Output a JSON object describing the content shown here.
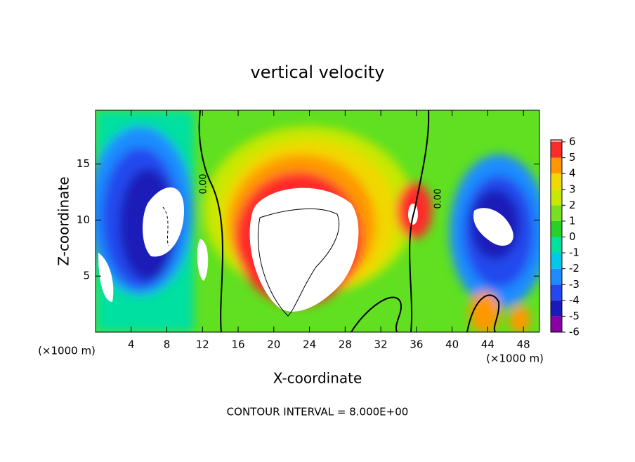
{
  "chart_data": {
    "type": "contour",
    "title": "vertical velocity",
    "x_label": "X-coordinate",
    "y_label": "Z-coordinate",
    "x_unit": "(×1000 m)",
    "xlim": [
      0,
      49.8
    ],
    "ylim": [
      0,
      19.8
    ],
    "xticks": [
      4,
      8,
      12,
      16,
      20,
      24,
      28,
      32,
      36,
      40,
      44,
      48
    ],
    "yticks": [
      5,
      10,
      15
    ],
    "colorbar": {
      "ticks": [
        6,
        5,
        4,
        3,
        2,
        1,
        0,
        -1,
        -2,
        -3,
        -4,
        -5,
        -6
      ],
      "colors": [
        "#8a00a8",
        "#1a1ab8",
        "#2448ee",
        "#1e8cff",
        "#00c8e8",
        "#00e0a0",
        "#28d028",
        "#78e020",
        "#c8e800",
        "#f0d800",
        "#ff9800",
        "#ff2a2a"
      ],
      "top_color": "#f8a0a0"
    },
    "contour_labels": [
      "0.00",
      "0.00"
    ],
    "footer": "CONTOUR INTERVAL = 8.000E+00"
  }
}
